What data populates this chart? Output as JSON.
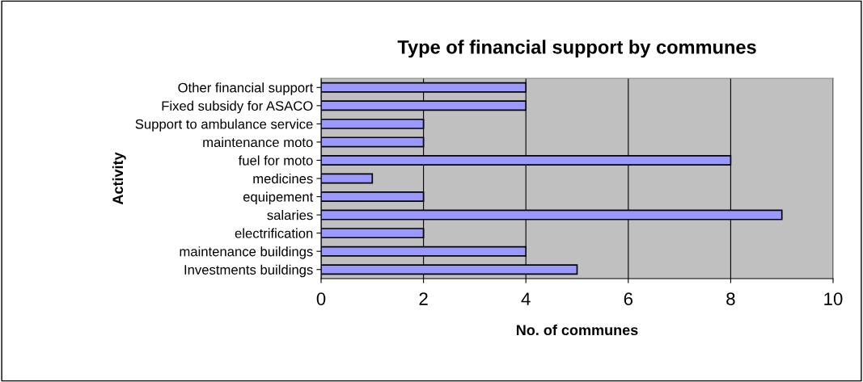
{
  "chart_data": {
    "type": "bar",
    "orientation": "horizontal",
    "title": "Type of financial support by communes",
    "xlabel": "No. of communes",
    "ylabel": "Activity",
    "categories": [
      "Other financial support",
      "Fixed subsidy for ASACO",
      "Support to ambulance service",
      "maintenance moto",
      "fuel for moto",
      "medicines",
      "equipement",
      "salaries",
      "electrification",
      "maintenance buildings",
      "Investments buildings"
    ],
    "values": [
      4,
      4,
      2,
      2,
      8,
      1,
      2,
      9,
      2,
      4,
      5
    ],
    "color": "#9999ff",
    "xlim": [
      0,
      10
    ],
    "xticks": [
      0,
      2,
      4,
      6,
      8,
      10
    ],
    "grid": "x",
    "legend": false
  }
}
